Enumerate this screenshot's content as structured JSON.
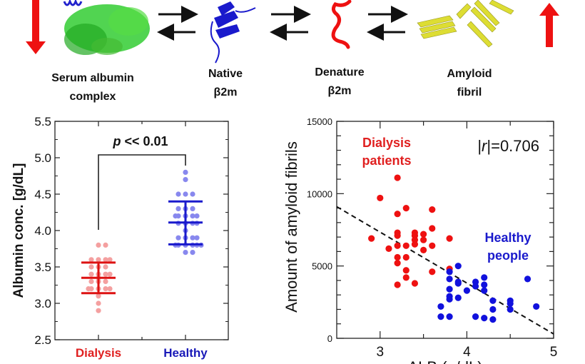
{
  "pathway": {
    "labels": [
      {
        "line1": "Serum albumin",
        "line2": "complex"
      },
      {
        "line1": "Native",
        "line2": "β2m"
      },
      {
        "line1": "Denature",
        "line2": "β2m"
      },
      {
        "line1": "Amyloid",
        "line2": "fibril"
      }
    ],
    "left_arrow": "decrease",
    "right_arrow": "increase",
    "colors": {
      "albumin": "#22cc22",
      "native": "#1a1acc",
      "denatured": "#ee1111",
      "fibril": "#dddd33",
      "arrow": "#ee1111"
    }
  },
  "chart_data": [
    {
      "type": "scatter",
      "subtype": "dot-plot-with-mean-sd",
      "title": "",
      "ylabel": "Albumin conc. [g/dL]",
      "xlabel": "",
      "ylim": [
        2.5,
        5.5
      ],
      "yticks": [
        "2.5",
        "3.0",
        "3.5",
        "4.0",
        "4.5",
        "5.0",
        "5.5"
      ],
      "categories": [
        "Dialysis",
        "Healthy"
      ],
      "category_colors": [
        "#e02020",
        "#1a1ab8"
      ],
      "annotation": {
        "p_symbol": "p",
        "p_text": " << 0.01"
      },
      "series": [
        {
          "name": "Dialysis",
          "color": "#f4a0a0",
          "bar_color": "#dd1111",
          "mean": 3.35,
          "sd_low": 3.14,
          "sd_high": 3.56,
          "values": [
            3.8,
            3.8,
            3.6,
            3.6,
            3.6,
            3.6,
            3.5,
            3.5,
            3.5,
            3.4,
            3.4,
            3.4,
            3.4,
            3.35,
            3.3,
            3.3,
            3.3,
            3.2,
            3.2,
            3.2,
            3.2,
            3.2,
            3.1,
            3.0,
            2.9
          ]
        },
        {
          "name": "Healthy",
          "color": "#8888ee",
          "bar_color": "#1a1acc",
          "mean": 4.11,
          "sd_low": 3.81,
          "sd_high": 4.4,
          "values": [
            4.8,
            4.7,
            4.5,
            4.5,
            4.5,
            4.3,
            4.3,
            4.3,
            4.2,
            4.2,
            4.2,
            4.2,
            4.2,
            4.1,
            4.1,
            4.1,
            4.1,
            4.0,
            3.9,
            3.9,
            3.9,
            3.9,
            3.8,
            3.8,
            3.8,
            3.8,
            3.8,
            3.8,
            3.7,
            3.7
          ]
        }
      ]
    },
    {
      "type": "scatter",
      "title": "",
      "ylabel": "Amount of amyloid fibrils",
      "xlabel": "ALB (g/dL)",
      "xlim": [
        2.5,
        5
      ],
      "ylim": [
        0,
        15000
      ],
      "xticks": [
        "3",
        "4",
        "5"
      ],
      "yticks": [
        "0",
        "5000",
        "10000",
        "15000"
      ],
      "annotation": {
        "prefix": "|",
        "symbol": "r",
        "suffix": "|=0.706"
      },
      "trendline": {
        "style": "dashed",
        "x": [
          2.5,
          5
        ],
        "y": [
          9100,
          300
        ]
      },
      "series": [
        {
          "name": "Dialysis patients",
          "label_line1": "Dialysis",
          "label_line2": "patients",
          "color": "#ee1111",
          "points": [
            [
              2.9,
              6900
            ],
            [
              3.0,
              9700
            ],
            [
              3.1,
              6200
            ],
            [
              3.2,
              11100
            ],
            [
              3.2,
              8600
            ],
            [
              3.2,
              7300
            ],
            [
              3.2,
              7100
            ],
            [
              3.2,
              6400
            ],
            [
              3.2,
              5600
            ],
            [
              3.2,
              5200
            ],
            [
              3.2,
              3700
            ],
            [
              3.3,
              9000
            ],
            [
              3.3,
              6400
            ],
            [
              3.3,
              5600
            ],
            [
              3.3,
              4700
            ],
            [
              3.3,
              4200
            ],
            [
              3.4,
              7300
            ],
            [
              3.4,
              7100
            ],
            [
              3.4,
              6800
            ],
            [
              3.4,
              6500
            ],
            [
              3.4,
              3800
            ],
            [
              3.5,
              7200
            ],
            [
              3.5,
              6800
            ],
            [
              3.5,
              6100
            ],
            [
              3.6,
              8900
            ],
            [
              3.6,
              7600
            ],
            [
              3.6,
              6400
            ],
            [
              3.6,
              4600
            ],
            [
              3.8,
              6900
            ],
            [
              3.8,
              4800
            ]
          ]
        },
        {
          "name": "Healthy people",
          "label_line1": "Healthy",
          "label_line2": "people",
          "color": "#1111dd",
          "points": [
            [
              3.7,
              2200
            ],
            [
              3.7,
              1500
            ],
            [
              3.8,
              4600
            ],
            [
              3.8,
              4100
            ],
            [
              3.8,
              3400
            ],
            [
              3.8,
              2900
            ],
            [
              3.8,
              2700
            ],
            [
              3.8,
              1500
            ],
            [
              3.9,
              5000
            ],
            [
              3.9,
              3900
            ],
            [
              3.9,
              3800
            ],
            [
              3.9,
              2800
            ],
            [
              4.0,
              3300
            ],
            [
              4.1,
              3900
            ],
            [
              4.1,
              3600
            ],
            [
              4.1,
              1500
            ],
            [
              4.2,
              4200
            ],
            [
              4.2,
              3700
            ],
            [
              4.2,
              3300
            ],
            [
              4.2,
              1400
            ],
            [
              4.3,
              2600
            ],
            [
              4.3,
              2000
            ],
            [
              4.3,
              1300
            ],
            [
              4.5,
              2600
            ],
            [
              4.5,
              2400
            ],
            [
              4.5,
              2000
            ],
            [
              4.7,
              4100
            ],
            [
              4.8,
              2200
            ]
          ]
        }
      ]
    }
  ]
}
